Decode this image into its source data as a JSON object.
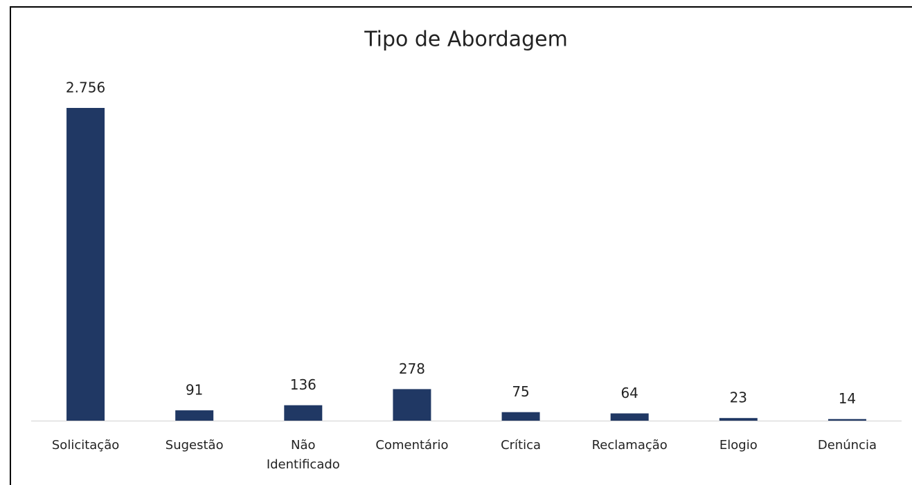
{
  "chart_data": {
    "type": "bar",
    "title": "Tipo de Abordagem",
    "categories": [
      "Solicitação",
      "Sugestão",
      "Não Identificado",
      "Comentário",
      "Crítica",
      "Reclamação",
      "Elogio",
      "Denúncia"
    ],
    "values": [
      2756,
      91,
      136,
      278,
      75,
      64,
      23,
      14
    ],
    "value_labels": [
      "2.756",
      "91",
      "136",
      "278",
      "75",
      "64",
      "23",
      "14"
    ],
    "color": "#203864"
  }
}
